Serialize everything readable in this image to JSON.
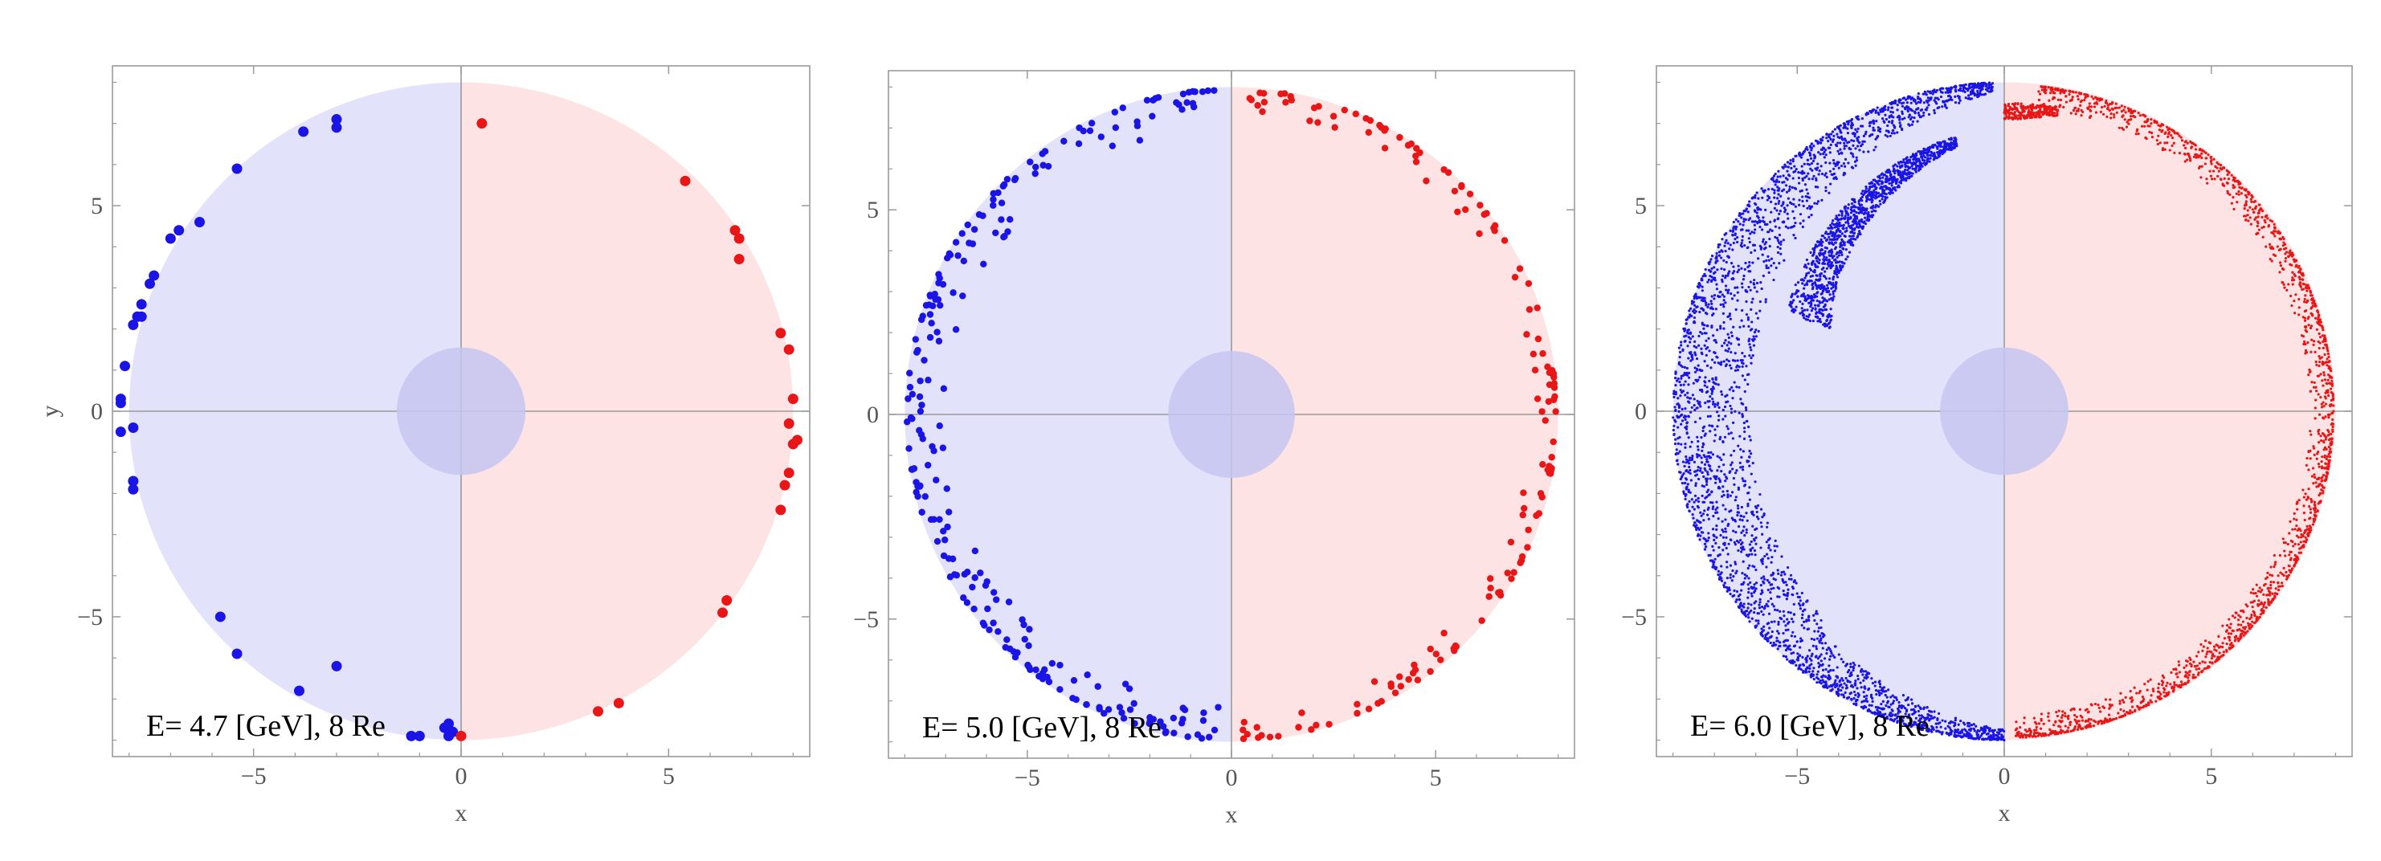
{
  "figure": {
    "colors": {
      "left_region": "#e2e2fb",
      "right_region": "#fde3e3",
      "center_disk": "#c6c6f1",
      "left_points": "#1a14e6",
      "right_points": "#e81616",
      "axis": "#9a9a9a",
      "frame": "#9a9a9a"
    }
  },
  "chart_data": [
    {
      "type": "scatter",
      "panel_label": "E= 4.7 [GeV], 8 Re",
      "xlabel": "x",
      "ylabel": "y",
      "xlim": [
        -8.4,
        8.4
      ],
      "ylim": [
        -8.4,
        8.4
      ],
      "x_ticks": [
        -5,
        0,
        5
      ],
      "y_ticks": [
        -5,
        0,
        5
      ],
      "x_tick_labels": [
        "−5",
        "0",
        "5"
      ],
      "y_tick_labels": [
        "−5",
        "0",
        "5"
      ],
      "region_radius": 8,
      "center_radius": 1,
      "series": [
        {
          "color": "left",
          "style": "large",
          "points": [
            [
              -3,
              7.1
            ],
            [
              -3,
              6.9
            ],
            [
              -3.8,
              6.8
            ],
            [
              -5.4,
              5.9
            ],
            [
              -6.3,
              4.6
            ],
            [
              -6.8,
              4.4
            ],
            [
              -7,
              4.2
            ],
            [
              -7.4,
              3.3
            ],
            [
              -7.5,
              3.1
            ],
            [
              -7.7,
              2.6
            ],
            [
              -7.8,
              2.3
            ],
            [
              -7.7,
              2.3
            ],
            [
              -7.9,
              2.1
            ],
            [
              -8.1,
              1.1
            ],
            [
              -8.2,
              0.3
            ],
            [
              -8.2,
              0.2
            ],
            [
              -7.9,
              -0.4
            ],
            [
              -8.2,
              -0.5
            ],
            [
              -7.9,
              -1.7
            ],
            [
              -7.9,
              -1.9
            ],
            [
              -5.8,
              -5
            ],
            [
              -5.4,
              -5.9
            ],
            [
              -3.9,
              -6.8
            ],
            [
              -3,
              -6.2
            ],
            [
              -1.2,
              -7.9
            ],
            [
              -1,
              -7.9
            ],
            [
              -0.3,
              -7.6
            ],
            [
              -0.4,
              -7.7
            ],
            [
              -0.2,
              -7.8
            ],
            [
              -0.3,
              -7.9
            ]
          ]
        },
        {
          "color": "right",
          "style": "large",
          "points": [
            [
              0.5,
              7
            ],
            [
              5.4,
              5.6
            ],
            [
              6.6,
              4.4
            ],
            [
              6.7,
              4.2
            ],
            [
              6.7,
              3.7
            ],
            [
              7.7,
              1.9
            ],
            [
              7.9,
              1.5
            ],
            [
              8,
              0.3
            ],
            [
              7.9,
              -0.3
            ],
            [
              8.1,
              -0.7
            ],
            [
              8,
              -0.8
            ],
            [
              7.9,
              -1.5
            ],
            [
              7.8,
              -1.8
            ],
            [
              7.7,
              -2.4
            ],
            [
              6.4,
              -4.6
            ],
            [
              6.3,
              -4.9
            ],
            [
              3.8,
              -7.1
            ],
            [
              3.3,
              -7.3
            ],
            [
              0,
              -7.9
            ]
          ]
        }
      ]
    },
    {
      "type": "scatter",
      "panel_label": "E= 5.0 [GeV], 8 Re",
      "xlabel": "x",
      "ylabel": "",
      "xlim": [
        -8.4,
        8.4
      ],
      "ylim": [
        -8.4,
        8.4
      ],
      "x_ticks": [
        -5,
        0,
        5
      ],
      "y_ticks": [
        -5,
        0,
        5
      ],
      "x_tick_labels": [
        "−5",
        "0",
        "5"
      ],
      "y_tick_labels": [
        "−5",
        "0",
        "5"
      ],
      "region_radius": 8,
      "center_radius": 1,
      "series": [
        {
          "color": "left",
          "style": "medium",
          "density": "front",
          "arc_start_deg": 93,
          "arc_end_deg": 268,
          "count": 230,
          "seed": 11
        },
        {
          "color": "right",
          "style": "medium",
          "density": "back",
          "arc_start_deg": -88,
          "arc_end_deg": 87,
          "count": 150,
          "seed": 12
        }
      ]
    },
    {
      "type": "scatter",
      "panel_label": "E= 6.0 [GeV], 8 Re",
      "xlabel": "x",
      "ylabel": "",
      "xlim": [
        -8.4,
        8.4
      ],
      "ylim": [
        -8.4,
        8.4
      ],
      "x_ticks": [
        -5,
        0,
        5
      ],
      "y_ticks": [
        -5,
        0,
        5
      ],
      "x_tick_labels": [
        "−5",
        "0",
        "5"
      ],
      "y_tick_labels": [
        "−5",
        "0",
        "5"
      ],
      "region_radius": 8,
      "center_radius": 1,
      "series": [
        {
          "color": "left",
          "style": "small",
          "density": "shell",
          "count": 4200,
          "seed": 21
        },
        {
          "color": "right",
          "style": "small",
          "density": "back",
          "arc_start_deg": -88,
          "arc_end_deg": 84,
          "count": 1700,
          "cluster": {
            "x_range": [
              0,
              1.3
            ],
            "y": 7.3,
            "count": 260
          },
          "seed": 22
        }
      ]
    }
  ]
}
